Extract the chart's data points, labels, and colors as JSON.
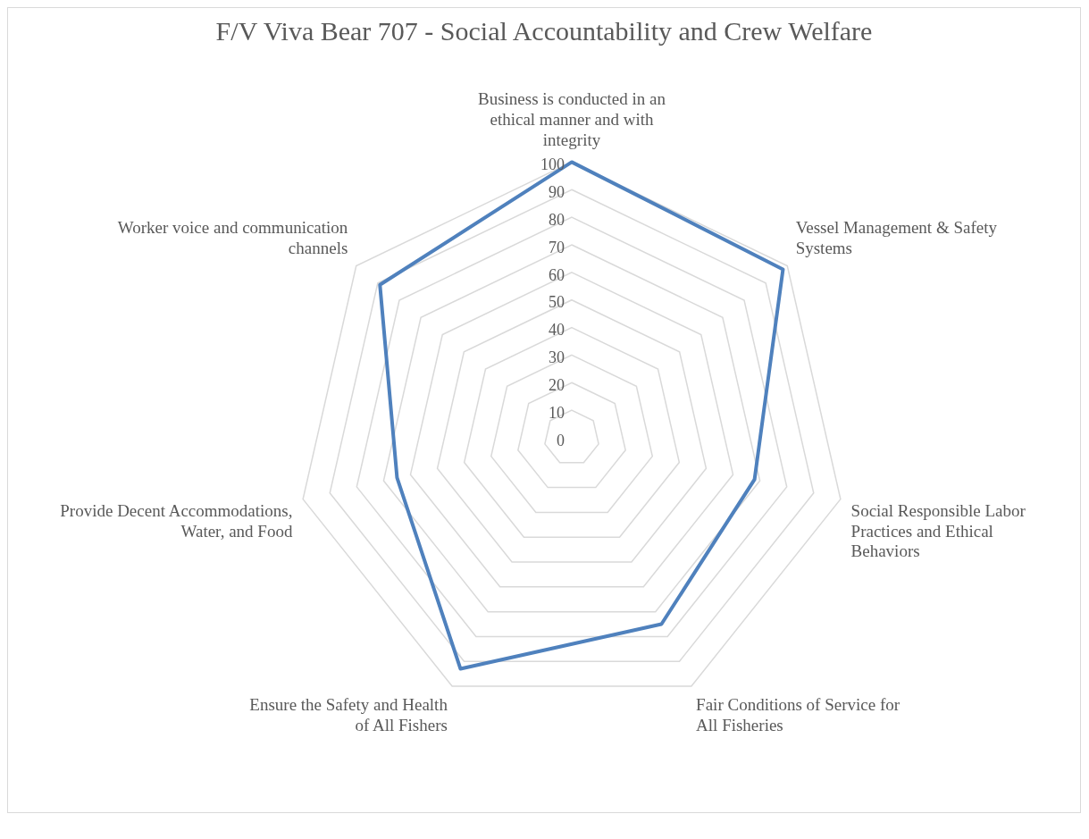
{
  "chart_data": {
    "type": "radar",
    "title": "F/V Viva Bear 707 - Social Accountability and Crew Welfare",
    "categories": [
      "Business is conducted in an ethical manner and with integrity",
      "Vessel Management & Safety Systems",
      "Social Responsible Labor Practices and Ethical Behaviors",
      "Fair Conditions of Service for All Fisheries",
      "Ensure the Safety and Health of All Fishers",
      "Provide Decent Accommodations, Water, and Food",
      "Worker voice and communication channels"
    ],
    "series": [
      {
        "color": "#4f81bd",
        "values": [
          100,
          98,
          68,
          75,
          93,
          65,
          89
        ]
      }
    ],
    "ylim": [
      0,
      100
    ],
    "yticks": [
      0,
      10,
      20,
      30,
      40,
      50,
      60,
      70,
      80,
      90,
      100
    ],
    "grid": true,
    "legend": false,
    "marker": "none"
  }
}
